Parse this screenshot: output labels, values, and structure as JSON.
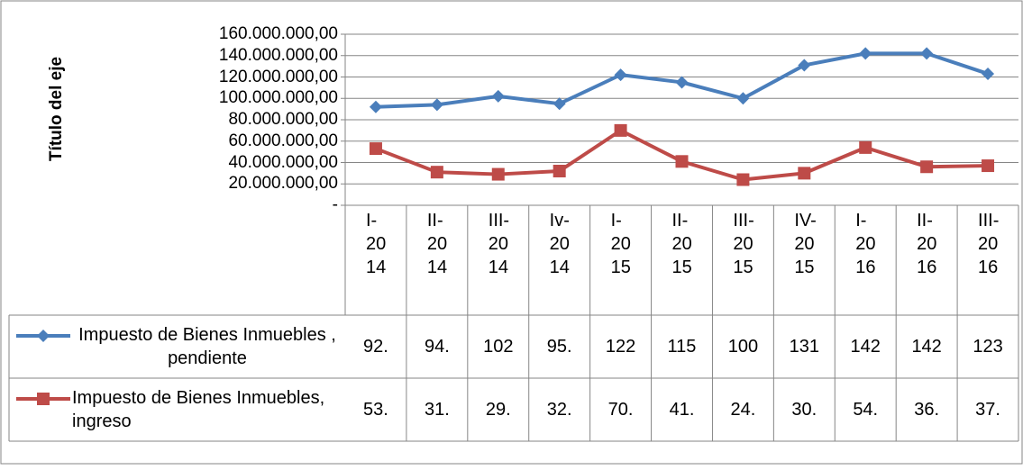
{
  "chart_data": {
    "type": "line",
    "y_axis_label": "Título del eje",
    "categories": [
      "I-2014",
      "II-2014",
      "III-2014",
      "Iv-2014",
      "I-2015",
      "II-2015",
      "III-2015",
      "IV-2015",
      "I-2016",
      "II-2016",
      "III-2016"
    ],
    "series": [
      {
        "name": "Impuesto de Bienes Inmuebles , pendiente",
        "color": "#4a7ebb",
        "marker": "diamond",
        "values": [
          92000000,
          94000000,
          102000000,
          95000000,
          122000000,
          115000000,
          100000000,
          131000000,
          142000000,
          142000000,
          123000000
        ],
        "value_labels": [
          "92.",
          "94.",
          "102",
          "95.",
          "122",
          "115",
          "100",
          "131",
          "142",
          "142",
          "123"
        ]
      },
      {
        "name": "Impuesto de Bienes Inmuebles, ingreso",
        "color": "#be4b48",
        "marker": "square",
        "values": [
          53000000,
          31000000,
          29000000,
          32000000,
          70000000,
          41000000,
          24000000,
          30000000,
          54000000,
          36000000,
          37000000
        ],
        "value_labels": [
          "53.",
          "31.",
          "29.",
          "32.",
          "70.",
          "41.",
          "24.",
          "30.",
          "54.",
          "36.",
          "37."
        ]
      }
    ],
    "ylim": [
      0,
      160000000
    ],
    "yticks": [
      {
        "value": 0,
        "label": "-"
      },
      {
        "value": 20000000,
        "label": "20.000.000,00"
      },
      {
        "value": 40000000,
        "label": "40.000.000,00"
      },
      {
        "value": 60000000,
        "label": "60.000.000,00"
      },
      {
        "value": 80000000,
        "label": "80.000.000,00"
      },
      {
        "value": 100000000,
        "label": "100.000.000,00"
      },
      {
        "value": 120000000,
        "label": "120.000.000,00"
      },
      {
        "value": 140000000,
        "label": "140.000.000,00"
      },
      {
        "value": 160000000,
        "label": "160.000.000,00"
      }
    ],
    "grid": true
  }
}
